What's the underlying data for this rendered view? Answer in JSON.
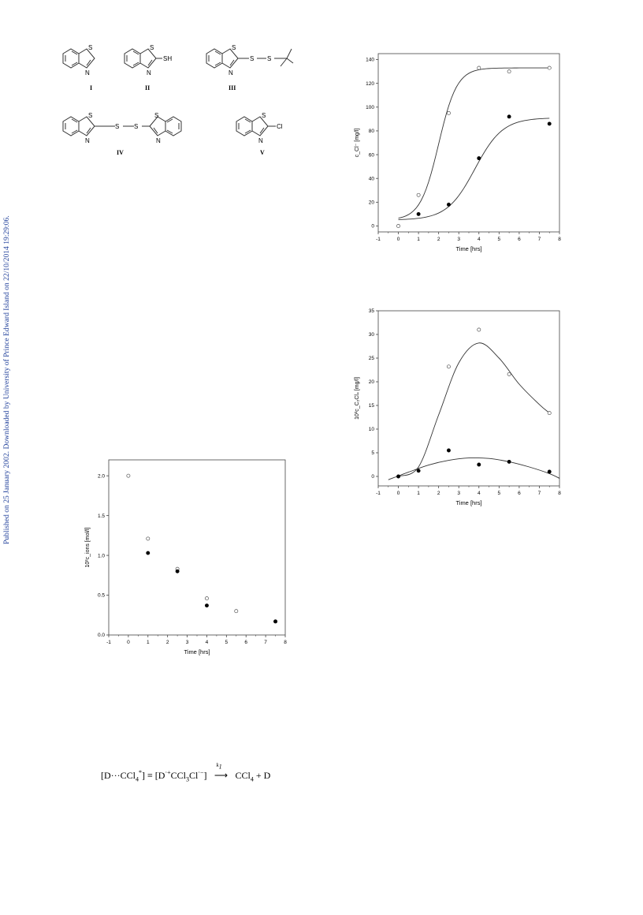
{
  "sidebar_note": "Published on 25 January 2002. Downloaded by University of Prince Edward Island on 22/10/2014 19:29:06.",
  "structures": {
    "labels": [
      "I",
      "II",
      "III",
      "IV",
      "V"
    ],
    "atoms": {
      "S": "S",
      "N": "N",
      "SH": "SH",
      "Cl": "Cl"
    }
  },
  "equation": {
    "left": "[D···CCl",
    "left_sub": "4",
    "left_sup": "*",
    "equiv": "] ≡ [D",
    "d_sup": "·+",
    "mid": "CCl",
    "mid_sub": "3",
    "mid2": "Cl",
    "mid2_sup": "·−",
    "bracket": "]",
    "rate_const": "k",
    "rate_sub": "1",
    "right": "CCl",
    "right_sub": "4",
    "right_tail": " + D"
  },
  "chart_data": [
    {
      "type": "scatter",
      "title": "",
      "xlabel": "Time [hrs]",
      "ylabel": "c_Cl⁻ [mg/l]",
      "xlim": [
        -1,
        8
      ],
      "ylim": [
        -5,
        145
      ],
      "xticks": [
        "-1",
        "0",
        "1",
        "2",
        "3",
        "4",
        "5",
        "6",
        "7",
        "8"
      ],
      "yticks": [
        "0",
        "20",
        "40",
        "60",
        "80",
        "100",
        "120",
        "140"
      ],
      "series": [
        {
          "marker": "open",
          "x": [
            0,
            1,
            2.5,
            4,
            5.5,
            7.5
          ],
          "y": [
            0,
            26,
            95,
            133,
            130,
            133
          ],
          "fit": {
            "kind": "sigmoid",
            "bottom": 5,
            "top": 133,
            "mid": 2.0,
            "k": 2.2
          }
        },
        {
          "marker": "filled",
          "x": [
            1,
            2.5,
            4,
            5.5,
            7.5
          ],
          "y": [
            10,
            18,
            57,
            92,
            86
          ],
          "fit": {
            "kind": "sigmoid",
            "bottom": 5,
            "top": 91,
            "mid": 3.8,
            "k": 1.45
          }
        }
      ],
      "curve_range": [
        0,
        7.5
      ]
    },
    {
      "type": "scatter",
      "title": "",
      "xlabel": "Time [hrs]",
      "ylabel": "10³c_C₂Cl₄ [mg/l]",
      "xlim": [
        -1,
        8
      ],
      "ylim": [
        -2,
        35
      ],
      "xticks": [
        "-1",
        "0",
        "1",
        "2",
        "3",
        "4",
        "5",
        "6",
        "7",
        "8"
      ],
      "yticks": [
        "0",
        "5",
        "10",
        "15",
        "20",
        "25",
        "30",
        "35"
      ],
      "series": [
        {
          "marker": "open",
          "x": [
            2.5,
            4,
            5.5,
            7.5
          ],
          "y": [
            23.2,
            31,
            21.6,
            13.4
          ],
          "fit": {
            "kind": "spline",
            "points": [
              [
                0,
                0
              ],
              [
                1,
                2
              ],
              [
                2,
                13
              ],
              [
                3,
                24
              ],
              [
                4,
                28.2
              ],
              [
                5,
                25
              ],
              [
                6,
                19.5
              ],
              [
                7,
                15.2
              ],
              [
                7.5,
                13.4
              ]
            ]
          }
        },
        {
          "marker": "filled",
          "x": [
            0,
            1,
            2.5,
            4,
            5.5,
            7.5
          ],
          "y": [
            0,
            1.2,
            5.5,
            2.5,
            3.1,
            1
          ],
          "fit": {
            "kind": "spline",
            "points": [
              [
                -0.5,
                -0.7
              ],
              [
                0.5,
                0.9
              ],
              [
                1.5,
                2.4
              ],
              [
                2.5,
                3.4
              ],
              [
                3.5,
                3.9
              ],
              [
                4.5,
                3.8
              ],
              [
                5.5,
                3.1
              ],
              [
                6.5,
                2
              ],
              [
                7.5,
                0.6
              ],
              [
                8,
                -0.4
              ]
            ]
          }
        }
      ]
    },
    {
      "type": "scatter",
      "title": "",
      "xlabel": "Time [hrs]",
      "ylabel": "10²c_ions [mol/l]",
      "xlim": [
        -1,
        8
      ],
      "ylim": [
        0,
        2.2
      ],
      "xticks": [
        "-1",
        "0",
        "1",
        "2",
        "3",
        "4",
        "5",
        "6",
        "7",
        "8"
      ],
      "yticks": [
        "0.0",
        "0.5",
        "1.0",
        "1.5",
        "2.0"
      ],
      "series": [
        {
          "marker": "open",
          "x": [
            0,
            1,
            2.5,
            4,
            5.5,
            7.5
          ],
          "y": [
            2.0,
            1.21,
            0.83,
            0.46,
            0.3,
            0.17
          ]
        },
        {
          "marker": "filled",
          "x": [
            1,
            2.5,
            4,
            7.5
          ],
          "y": [
            1.03,
            0.8,
            0.37,
            0.17
          ]
        }
      ]
    }
  ]
}
